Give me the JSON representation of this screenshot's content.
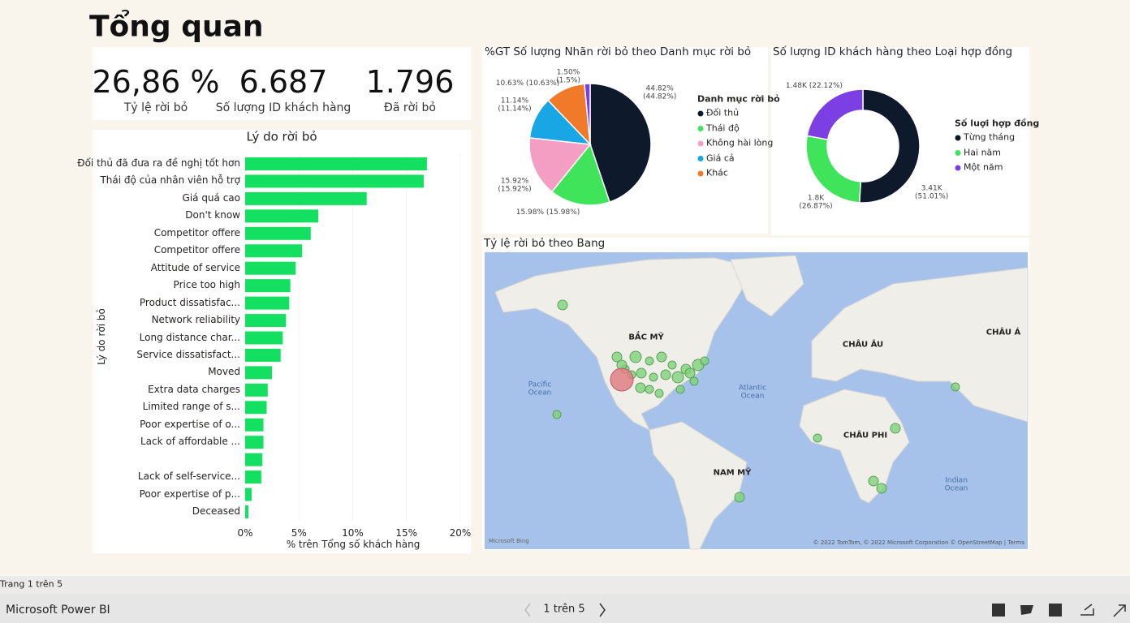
{
  "title": "Tổng quan",
  "kpis": [
    {
      "value": "26,86 %",
      "label": "Tỷ lệ rời bỏ"
    },
    {
      "value": "6.687",
      "label": "Số lượng ID khách hàng"
    },
    {
      "value": "1.796",
      "label": "Đã rời bỏ"
    }
  ],
  "chart_data": [
    {
      "type": "bar",
      "orientation": "horizontal",
      "title": "Lý do rời bỏ",
      "x_label": "% trên Tổng số khách hàng",
      "y_label": "Lý do rời bỏ",
      "categories": [
        "Đối thủ đã đưa ra đề nghị tốt hơn",
        "Thái độ của nhân viên hỗ trợ",
        "Giá quá cao",
        "Don't know",
        "Competitor offere",
        "Competitor offere",
        "Attitude of service",
        "Price too high",
        "Product dissatisfac...",
        "Network reliability",
        "Long distance char...",
        "Service dissatisfact...",
        "Moved",
        "Extra data charges",
        "Limited range of s...",
        "Poor expertise of o...",
        "Lack of affordable ...",
        null,
        "Lack of self-service...",
        "Poor expertise of p...",
        "Deceased"
      ],
      "values": [
        16.9,
        16.6,
        11.3,
        6.8,
        6.1,
        5.3,
        4.7,
        4.2,
        4.1,
        3.8,
        3.5,
        3.3,
        2.5,
        2.1,
        2.0,
        1.7,
        1.7,
        1.6,
        1.5,
        0.6,
        0.3
      ],
      "color": "#13e060",
      "xlim": [
        0,
        20
      ],
      "xticks": [
        {
          "value": 0,
          "label": "0%"
        },
        {
          "value": 5,
          "label": "5%"
        },
        {
          "value": 10,
          "label": "10%"
        },
        {
          "value": 15,
          "label": "15%"
        },
        {
          "value": 20,
          "label": "20%"
        }
      ]
    },
    {
      "type": "pie",
      "title": "%GT Số lượng Nhãn rời bỏ theo Danh mục rời bỏ",
      "legend_title": "Danh mục rời bỏ",
      "categories": [
        "Đối thủ",
        "Thái độ",
        "Không hài lòng",
        "Giá cả",
        "Khác",
        null
      ],
      "values": [
        44.82,
        15.98,
        15.92,
        11.14,
        10.63,
        1.5
      ],
      "value_labels": [
        "44.82%\n(44.82%)",
        "15.98% (15.98%)",
        "15.92%\n(15.92%)",
        "11.14%\n(11.14%)",
        "10.63% (10.63%)",
        "1.50%\n(1.5%)"
      ],
      "colors": [
        "#0e1a2c",
        "#3fe45a",
        "#f59ec4",
        "#19a6e4",
        "#f07a2a",
        "#7b3fe4"
      ]
    },
    {
      "type": "donut",
      "title": "Số lượng ID khách hàng theo Loại hợp đồng",
      "legend_title": "Số luợi hợp đồng",
      "categories": [
        "Từng tháng",
        "Hai năm",
        "Một năm"
      ],
      "values": [
        3410,
        1800,
        1480
      ],
      "value_labels": [
        "3.41K\n(51.01%)",
        "1.8K\n(26.87%)",
        "1.48K (22.12%)"
      ],
      "colors": [
        "#0e1a2c",
        "#3fe45a",
        "#7b3fe4"
      ]
    }
  ],
  "map": {
    "title": "Tỷ lệ rời bỏ theo Bang",
    "labels": [
      "BẮC MỸ",
      "CHÂU ÂU",
      "CHÂU Á",
      "CHÂU PHI",
      "NAM MỸ",
      "Pacific\nOcean",
      "Atlantic\nOcean",
      "Indian\nOcean"
    ],
    "logo": "Microsoft Bing",
    "attribution": "© 2022 TomTom, © 2022 Microsoft Corporation © OpenStreetMap | Terms"
  },
  "footer": {
    "page_status": "Trang 1 trên 5",
    "app": "Microsoft Power BI",
    "pager": "1 trên 5"
  }
}
